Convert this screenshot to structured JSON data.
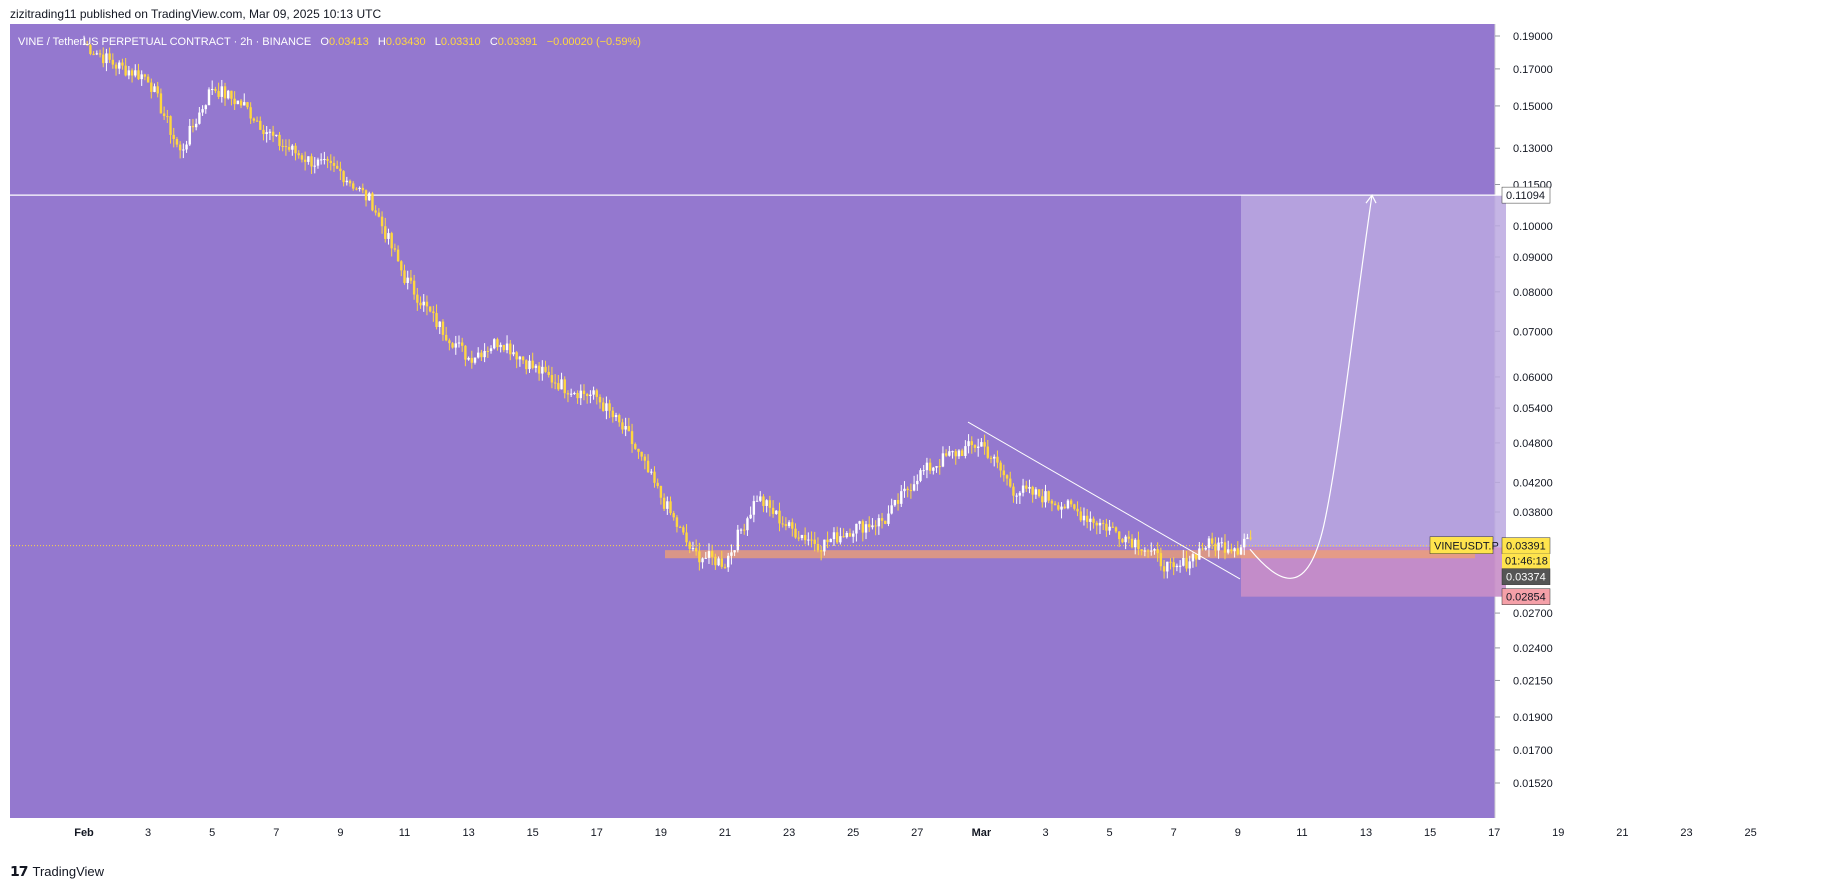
{
  "publish_info": "zizitrading11 published on TradingView.com, Mar 09, 2025 10:13 UTC",
  "footer": {
    "brand": "TradingView"
  },
  "symbol": {
    "title": "VINE / TetherUS PERPETUAL CONTRACT · 2h · BINANCE",
    "open_label": "O",
    "open": "0.03413",
    "high_label": "H",
    "high": "0.03430",
    "low_label": "L",
    "low": "0.03310",
    "close_label": "C",
    "close": "0.03391",
    "change": "−0.00020 (−0.59%)"
  },
  "colors": {
    "background": "#9478cf",
    "candle_up": "#ffffff",
    "candle_down": "#ffd740",
    "resistance_line": "#ffffff",
    "support_zone": "#f0a070",
    "target_zone": "#bba8e0",
    "stop_zone": "#c88ec8",
    "last_price_tag": "#ffe44d",
    "target_tag": "#ffffff",
    "stop_tag": "#f5a0a8",
    "entry_tag": "#555555"
  },
  "chart_data": {
    "type": "candlestick",
    "timeframe": "2h",
    "x_axis": {
      "ticks": [
        "Feb",
        "3",
        "5",
        "7",
        "9",
        "11",
        "13",
        "15",
        "17",
        "19",
        "21",
        "23",
        "25",
        "27",
        "Mar",
        "3",
        "5",
        "7",
        "9",
        "11",
        "13",
        "15",
        "17",
        "19",
        "21",
        "23",
        "25"
      ]
    },
    "y_axis": {
      "scale": "log",
      "ticks": [
        "0.19000",
        "0.17000",
        "0.15000",
        "0.13000",
        "0.11500",
        "0.10000",
        "0.09000",
        "0.08000",
        "0.07000",
        "0.06000",
        "0.05400",
        "0.04800",
        "0.04200",
        "0.03800",
        "0.02700",
        "0.02400",
        "0.02150",
        "0.01900",
        "0.01700",
        "0.01520"
      ]
    },
    "approx_closes_by_day": [
      [
        "Feb 1",
        0.185
      ],
      [
        "Feb 2",
        0.172
      ],
      [
        "Feb 3",
        0.165
      ],
      [
        "Feb 4",
        0.128
      ],
      [
        "Feb 5",
        0.16
      ],
      [
        "Feb 6",
        0.15
      ],
      [
        "Feb 7",
        0.133
      ],
      [
        "Feb 8",
        0.125
      ],
      [
        "Feb 9",
        0.12
      ],
      [
        "Feb 10",
        0.108
      ],
      [
        "Feb 11",
        0.084
      ],
      [
        "Feb 12",
        0.072
      ],
      [
        "Feb 13",
        0.064
      ],
      [
        "Feb 14",
        0.068
      ],
      [
        "Feb 15",
        0.062
      ],
      [
        "Feb 16",
        0.058
      ],
      [
        "Feb 17",
        0.056
      ],
      [
        "Feb 18",
        0.049
      ],
      [
        "Feb 19",
        0.04
      ],
      [
        "Feb 20",
        0.033
      ],
      [
        "Feb 21",
        0.032
      ],
      [
        "Feb 22",
        0.04
      ],
      [
        "Feb 23",
        0.036
      ],
      [
        "Feb 24",
        0.034
      ],
      [
        "Feb 25",
        0.036
      ],
      [
        "Feb 26",
        0.037
      ],
      [
        "Feb 27",
        0.043
      ],
      [
        "Feb 28",
        0.046
      ],
      [
        "Mar 1",
        0.048
      ],
      [
        "Mar 2",
        0.041
      ],
      [
        "Mar 3",
        0.04
      ],
      [
        "Mar 4",
        0.038
      ],
      [
        "Mar 5",
        0.036
      ],
      [
        "Mar 6",
        0.034
      ],
      [
        "Mar 7",
        0.031
      ],
      [
        "Mar 8",
        0.034
      ],
      [
        "Mar 9",
        0.0339
      ]
    ],
    "resistance_level": 0.11094,
    "support_zone": [
      0.0325,
      0.0334
    ],
    "position": {
      "type": "long",
      "entry": 0.03374,
      "target": 0.11094,
      "stop": 0.02854
    },
    "last_price": {
      "label": "VINEUSDT.P",
      "price": "0.03391",
      "countdown": "01:46:18"
    },
    "price_labels": {
      "target": "0.11094",
      "entry": "0.03374",
      "stop": "0.02854"
    }
  }
}
